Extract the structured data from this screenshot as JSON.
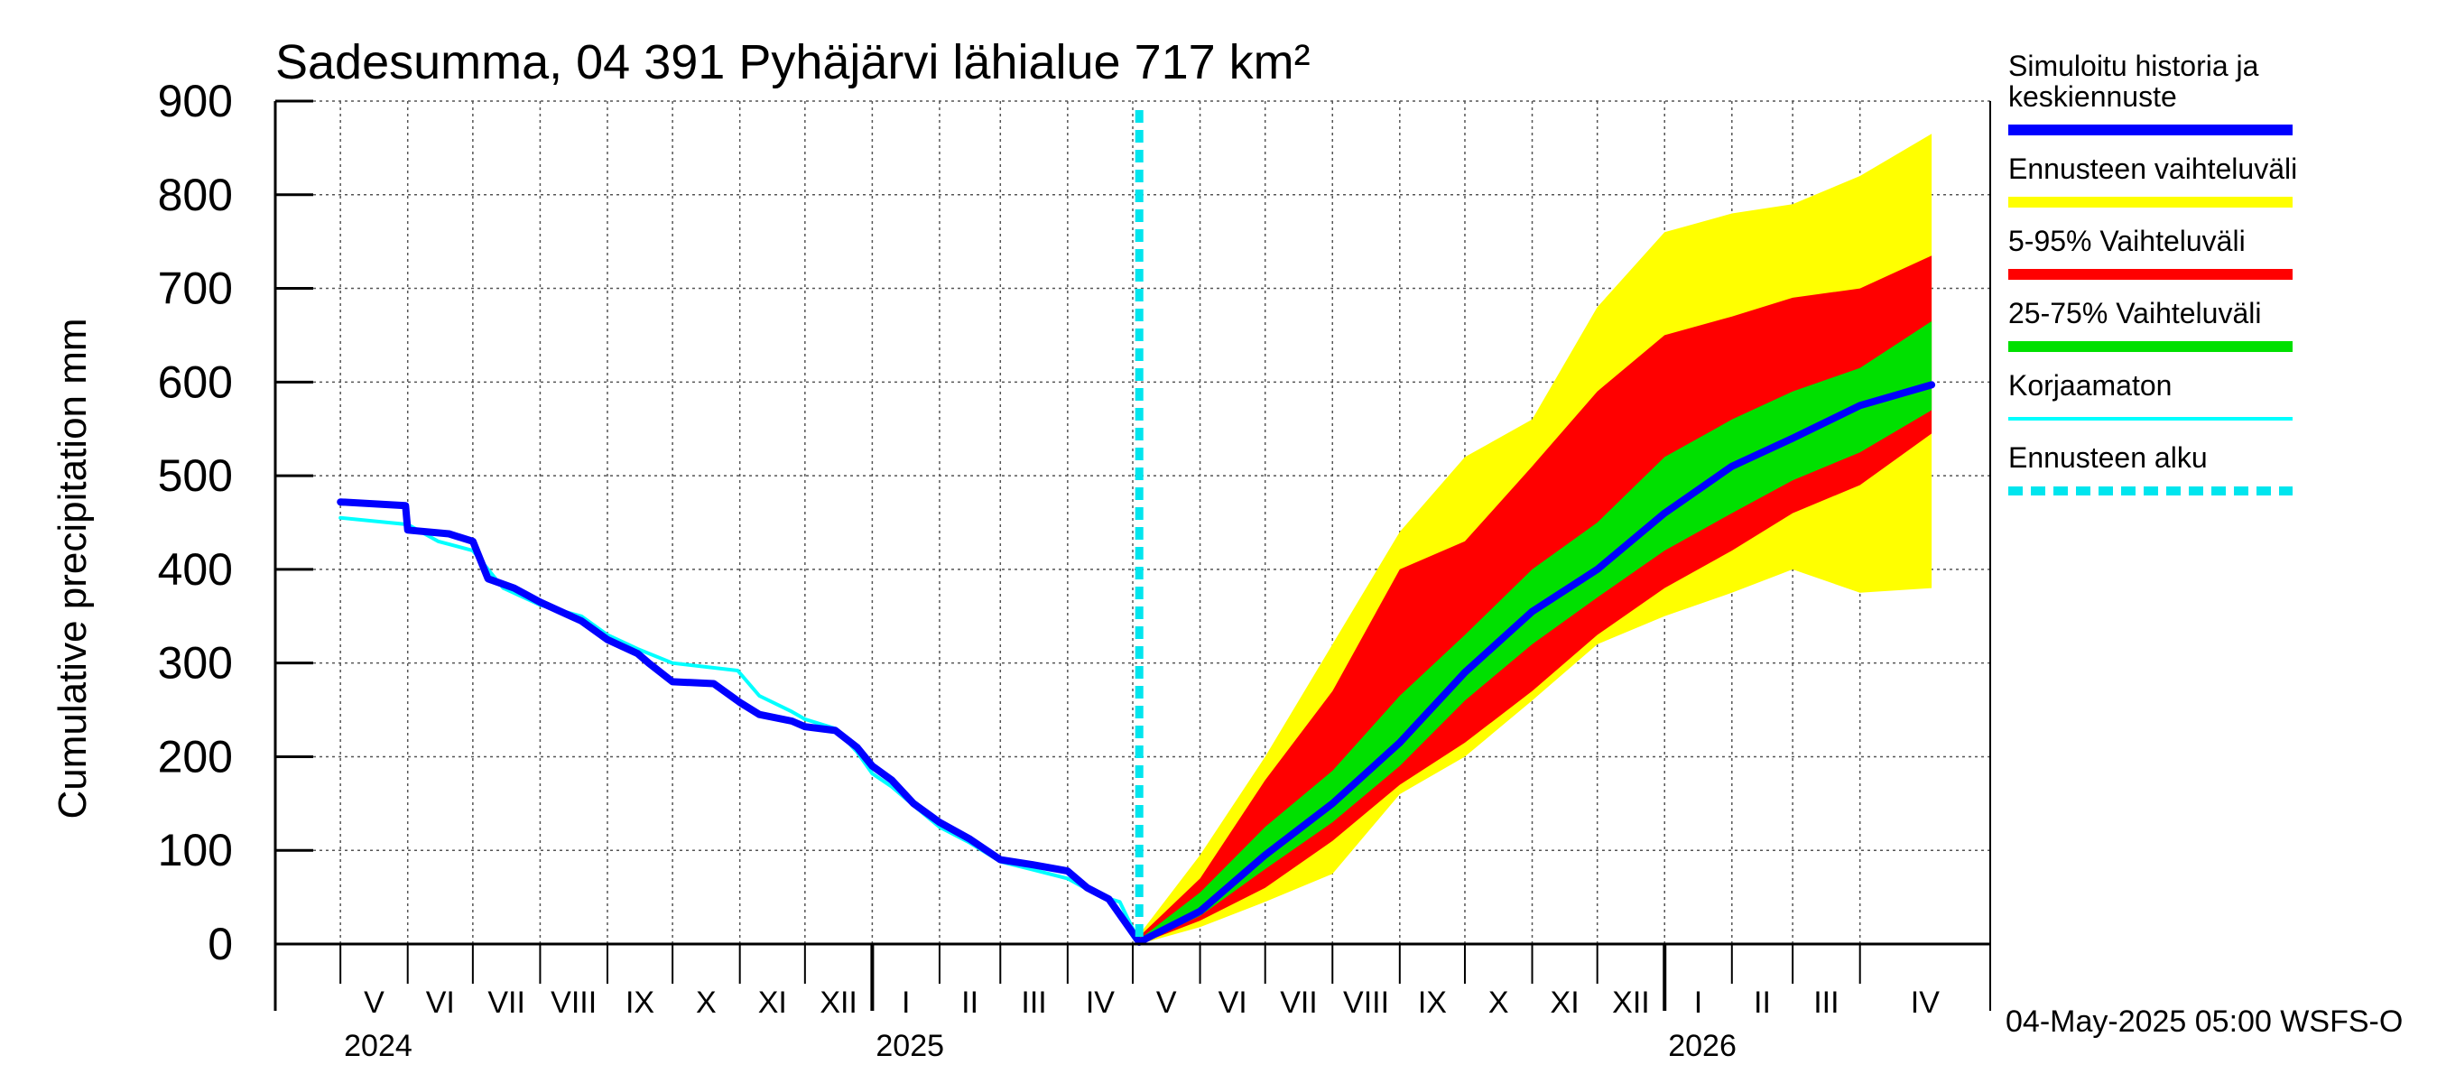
{
  "chart_data": {
    "type": "area",
    "title": "Sadesumma, 04 391 Pyhäjärvi lähialue 717 km²",
    "xlabel": "",
    "ylabel": "Cumulative precipitation   mm",
    "ylim": [
      0,
      900
    ],
    "yticks": [
      "0",
      "100",
      "200",
      "300",
      "400",
      "500",
      "600",
      "700",
      "800",
      "900"
    ],
    "xlim": [
      "2024-04-01",
      "2026-05-31"
    ],
    "forecast_start": "2025-05-04",
    "grid": true,
    "legend_position": "right",
    "months": [
      {
        "label": "V",
        "start": "2024-05-01"
      },
      {
        "label": "VI",
        "start": "2024-06-01"
      },
      {
        "label": "VII",
        "start": "2024-07-01"
      },
      {
        "label": "VIII",
        "start": "2024-08-01"
      },
      {
        "label": "IX",
        "start": "2024-09-01"
      },
      {
        "label": "X",
        "start": "2024-10-01"
      },
      {
        "label": "XI",
        "start": "2024-11-01"
      },
      {
        "label": "XII",
        "start": "2024-12-01"
      },
      {
        "label": "I",
        "start": "2025-01-01"
      },
      {
        "label": "II",
        "start": "2025-02-01"
      },
      {
        "label": "III",
        "start": "2025-03-01"
      },
      {
        "label": "IV",
        "start": "2025-04-01"
      },
      {
        "label": "V",
        "start": "2025-05-01"
      },
      {
        "label": "VI",
        "start": "2025-06-01"
      },
      {
        "label": "VII",
        "start": "2025-07-01"
      },
      {
        "label": "VIII",
        "start": "2025-08-01"
      },
      {
        "label": "IX",
        "start": "2025-09-01"
      },
      {
        "label": "X",
        "start": "2025-10-01"
      },
      {
        "label": "XI",
        "start": "2025-11-01"
      },
      {
        "label": "XII",
        "start": "2025-12-01"
      },
      {
        "label": "I",
        "start": "2026-01-01"
      },
      {
        "label": "II",
        "start": "2026-02-01"
      },
      {
        "label": "III",
        "start": "2026-03-01"
      },
      {
        "label": "IV",
        "start": "2026-04-01"
      }
    ],
    "years": [
      {
        "label": "2024",
        "start": "2024-05-01"
      },
      {
        "label": "2025",
        "start": "2025-01-01"
      },
      {
        "label": "2026",
        "start": "2026-01-01"
      }
    ],
    "series": [
      {
        "name": "Simuloitu historia ja keskiennuste",
        "color": "#0000ff",
        "role": "history",
        "points": [
          [
            "2024-05-01",
            472
          ],
          [
            "2024-05-31",
            468
          ],
          [
            "2024-06-01",
            442
          ],
          [
            "2024-06-20",
            438
          ],
          [
            "2024-07-01",
            430
          ],
          [
            "2024-07-08",
            390
          ],
          [
            "2024-07-20",
            380
          ],
          [
            "2024-08-01",
            365
          ],
          [
            "2024-08-20",
            345
          ],
          [
            "2024-09-01",
            325
          ],
          [
            "2024-09-15",
            310
          ],
          [
            "2024-09-20",
            300
          ],
          [
            "2024-10-01",
            280
          ],
          [
            "2024-10-20",
            278
          ],
          [
            "2024-11-01",
            258
          ],
          [
            "2024-11-10",
            245
          ],
          [
            "2024-11-25",
            238
          ],
          [
            "2024-12-01",
            232
          ],
          [
            "2024-12-15",
            228
          ],
          [
            "2024-12-25",
            210
          ],
          [
            "2025-01-01",
            190
          ],
          [
            "2025-01-10",
            175
          ],
          [
            "2025-01-20",
            150
          ],
          [
            "2025-02-01",
            130
          ],
          [
            "2025-02-15",
            112
          ],
          [
            "2025-03-01",
            90
          ],
          [
            "2025-03-15",
            85
          ],
          [
            "2025-04-01",
            78
          ],
          [
            "2025-04-10",
            60
          ],
          [
            "2025-04-20",
            48
          ],
          [
            "2025-05-04",
            2
          ]
        ]
      },
      {
        "name": "Korjaamaton",
        "color": "#00ffff",
        "role": "uncorrected",
        "points": [
          [
            "2024-05-01",
            455
          ],
          [
            "2024-06-01",
            448
          ],
          [
            "2024-06-15",
            430
          ],
          [
            "2024-07-01",
            420
          ],
          [
            "2024-07-15",
            380
          ],
          [
            "2024-08-01",
            362
          ],
          [
            "2024-08-20",
            350
          ],
          [
            "2024-09-01",
            330
          ],
          [
            "2024-09-15",
            315
          ],
          [
            "2024-10-01",
            300
          ],
          [
            "2024-10-31",
            292
          ],
          [
            "2024-11-10",
            265
          ],
          [
            "2024-11-25",
            248
          ],
          [
            "2024-12-01",
            240
          ],
          [
            "2024-12-15",
            230
          ],
          [
            "2024-12-25",
            205
          ],
          [
            "2025-01-01",
            182
          ],
          [
            "2025-01-10",
            168
          ],
          [
            "2025-01-20",
            148
          ],
          [
            "2025-02-01",
            125
          ],
          [
            "2025-02-15",
            108
          ],
          [
            "2025-03-01",
            88
          ],
          [
            "2025-03-15",
            80
          ],
          [
            "2025-04-01",
            70
          ],
          [
            "2025-04-15",
            52
          ],
          [
            "2025-04-25",
            45
          ],
          [
            "2025-05-04",
            2
          ]
        ]
      },
      {
        "name": "Simuloitu historia ja keskiennuste",
        "color": "#0000ff",
        "role": "forecast_median",
        "points": [
          [
            "2025-05-04",
            2
          ],
          [
            "2025-06-01",
            35
          ],
          [
            "2025-07-01",
            95
          ],
          [
            "2025-08-01",
            150
          ],
          [
            "2025-09-01",
            215
          ],
          [
            "2025-10-01",
            290
          ],
          [
            "2025-11-01",
            355
          ],
          [
            "2025-12-01",
            400
          ],
          [
            "2026-01-01",
            460
          ],
          [
            "2026-02-01",
            510
          ],
          [
            "2026-03-01",
            540
          ],
          [
            "2026-04-01",
            575
          ],
          [
            "2026-05-04",
            597
          ]
        ]
      }
    ],
    "bands": [
      {
        "name": "Ennusteen vaihteluväli",
        "color": "#ffff00",
        "dates": [
          "2025-05-04",
          "2025-06-01",
          "2025-07-01",
          "2025-08-01",
          "2025-09-01",
          "2025-10-01",
          "2025-11-01",
          "2025-12-01",
          "2026-01-01",
          "2026-02-01",
          "2026-03-01",
          "2026-04-01",
          "2026-05-04"
        ],
        "lower": [
          0,
          18,
          45,
          75,
          160,
          200,
          260,
          320,
          350,
          375,
          400,
          375,
          380
        ],
        "upper": [
          10,
          95,
          200,
          320,
          440,
          520,
          560,
          680,
          760,
          780,
          790,
          820,
          865
        ]
      },
      {
        "name": "5-95% Vaihteluväli",
        "color": "#ff0000",
        "dates": [
          "2025-05-04",
          "2025-06-01",
          "2025-07-01",
          "2025-08-01",
          "2025-09-01",
          "2025-10-01",
          "2025-11-01",
          "2025-12-01",
          "2026-01-01",
          "2026-02-01",
          "2026-03-01",
          "2026-04-01",
          "2026-05-04"
        ],
        "lower": [
          0,
          25,
          60,
          110,
          170,
          215,
          270,
          330,
          380,
          420,
          460,
          490,
          545
        ],
        "upper": [
          8,
          70,
          175,
          270,
          400,
          430,
          510,
          590,
          650,
          670,
          690,
          700,
          735
        ]
      },
      {
        "name": "25-75% Vaihteluväli",
        "color": "#00e000",
        "dates": [
          "2025-05-04",
          "2025-06-01",
          "2025-07-01",
          "2025-08-01",
          "2025-09-01",
          "2025-10-01",
          "2025-11-01",
          "2025-12-01",
          "2026-01-01",
          "2026-02-01",
          "2026-03-01",
          "2026-04-01",
          "2026-05-04"
        ],
        "lower": [
          0,
          30,
          80,
          130,
          190,
          260,
          320,
          370,
          420,
          460,
          495,
          525,
          570
        ],
        "upper": [
          5,
          55,
          125,
          185,
          265,
          330,
          400,
          450,
          520,
          560,
          590,
          615,
          665
        ]
      }
    ],
    "legend": [
      {
        "label": "Simuloitu historia ja keskiennuste",
        "color": "#0000ff",
        "style": "line-thick"
      },
      {
        "label": "Ennusteen vaihteluväli",
        "color": "#ffff00",
        "style": "band"
      },
      {
        "label": "5-95% Vaihteluväli",
        "color": "#ff0000",
        "style": "band"
      },
      {
        "label": "25-75% Vaihteluväli",
        "color": "#00e000",
        "style": "band"
      },
      {
        "label": "Korjaamaton",
        "color": "#00ffff",
        "style": "line-thin"
      },
      {
        "label": "Ennusteen alku",
        "color": "#00e5ee",
        "style": "dashed"
      }
    ],
    "footer": "04-May-2025 05:00 WSFS-O"
  }
}
